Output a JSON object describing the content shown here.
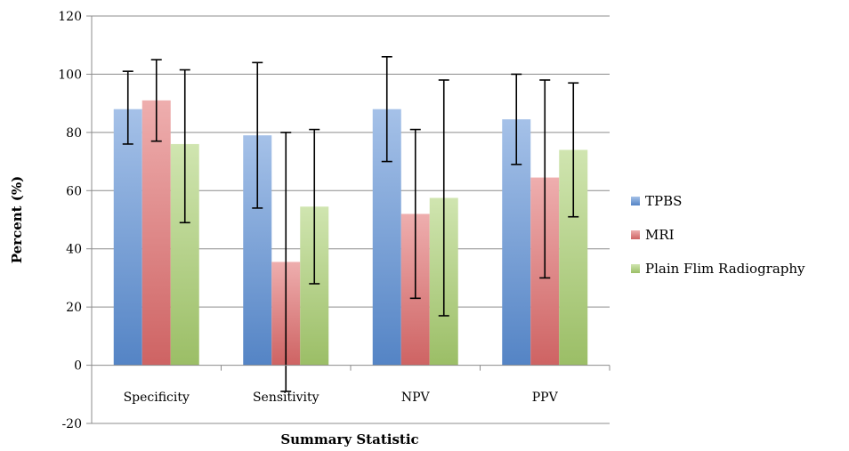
{
  "chart_data": {
    "type": "bar",
    "title": "",
    "xlabel": "Summary Statistic",
    "ylabel": "Percent (%)",
    "ylim": [
      -20,
      120
    ],
    "yticks": [
      -20,
      0,
      20,
      40,
      60,
      80,
      100,
      120
    ],
    "grid": true,
    "legend_position": "right",
    "categories": [
      "Specificity",
      "Sensitivity",
      "NPV",
      "PPV"
    ],
    "series": [
      {
        "name": "TPBS",
        "color": "#5b8fd6",
        "values": [
          88,
          79,
          88,
          84.5
        ],
        "error_low": [
          76,
          54,
          70,
          69
        ],
        "error_high": [
          101,
          104,
          106,
          100
        ]
      },
      {
        "name": "MRI",
        "color": "#e06c6c",
        "values": [
          91,
          35.5,
          52,
          64.5
        ],
        "error_low": [
          77,
          -9,
          23,
          30
        ],
        "error_high": [
          105,
          80,
          81,
          98
        ]
      },
      {
        "name": "Plain Flim Radiography",
        "color": "#a9cf6f",
        "values": [
          76,
          54.5,
          57.5,
          74
        ],
        "error_low": [
          49,
          28,
          17,
          51
        ],
        "error_high": [
          101.5,
          81,
          98,
          97
        ]
      }
    ]
  }
}
